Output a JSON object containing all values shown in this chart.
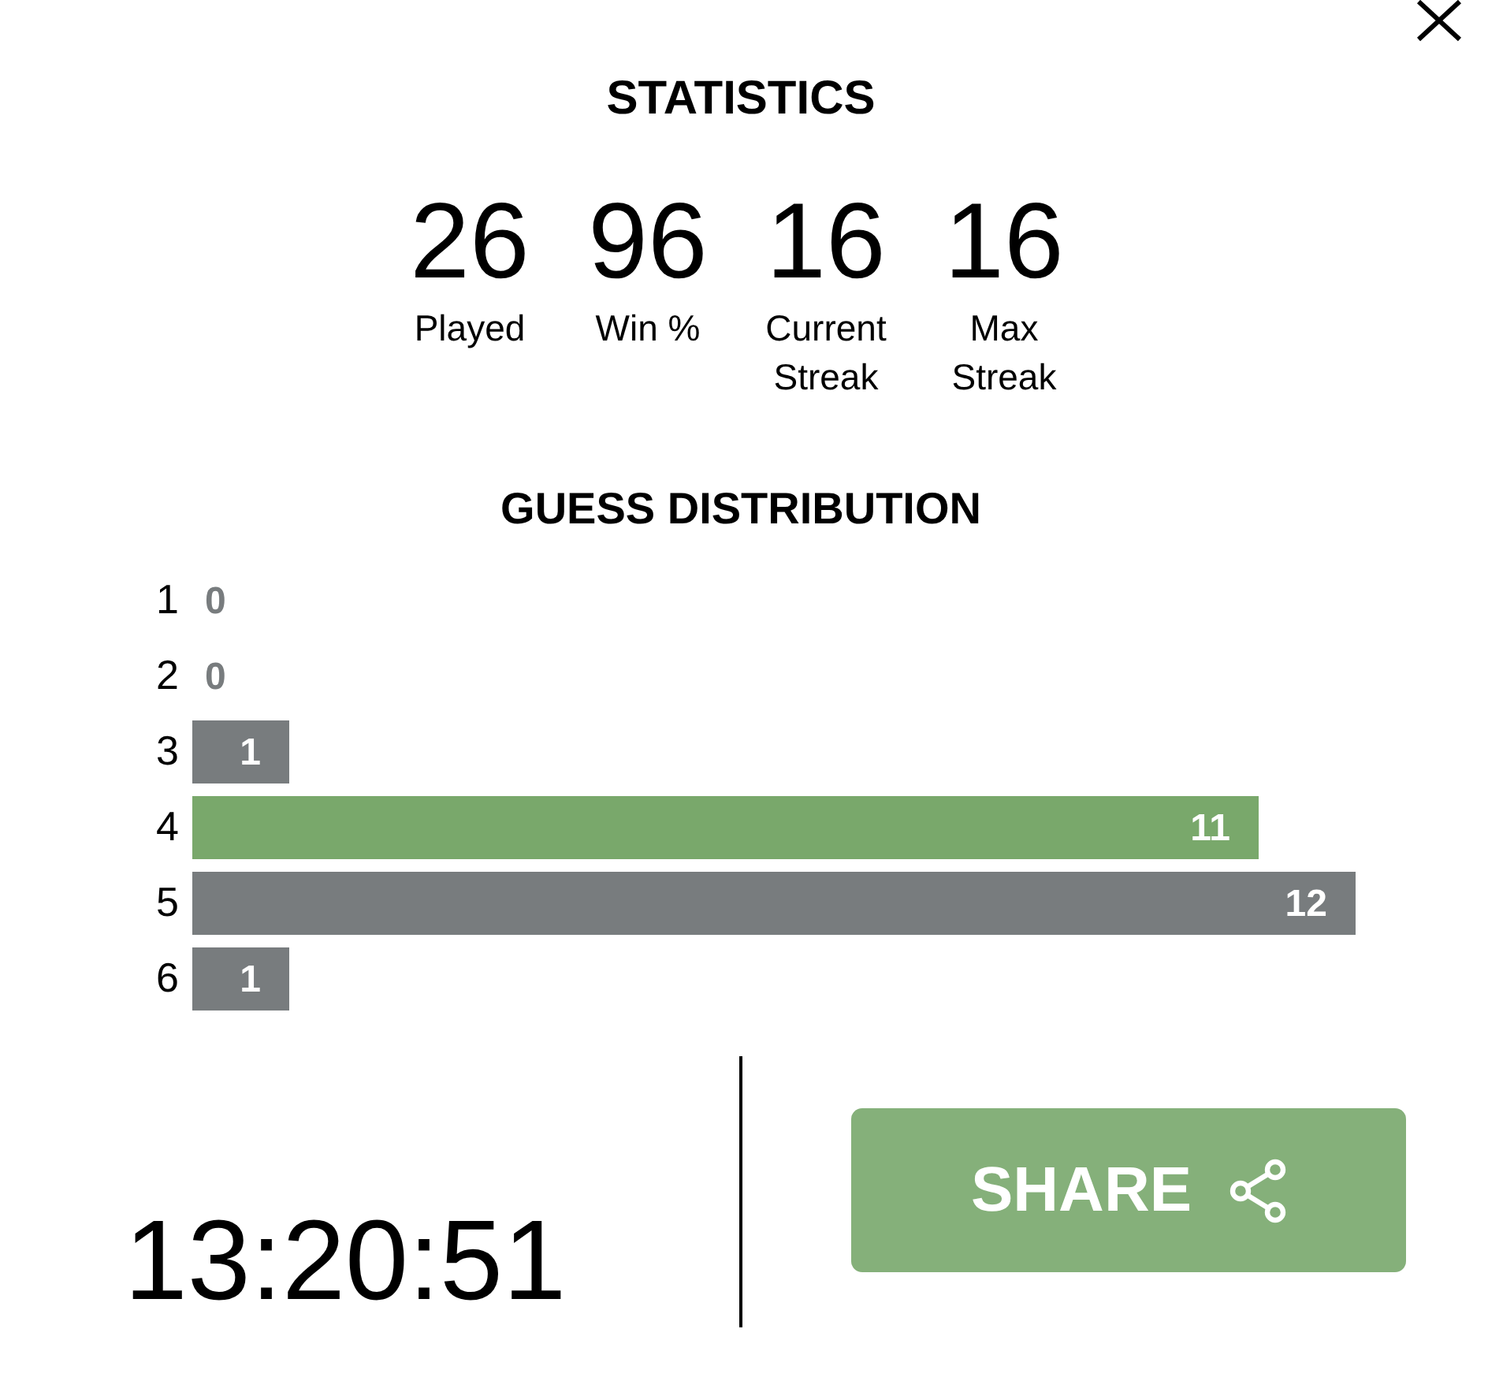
{
  "chart_data": [
    {
      "type": "other",
      "title": "STATISTICS",
      "annotations": [
        "26",
        "Played",
        "96",
        "Win %",
        "16",
        "Current Streak",
        "16",
        "Max Streak"
      ]
    },
    {
      "type": "bar",
      "title": "GUESS DISTRIBUTION",
      "orientation": "horizontal",
      "categories": [
        "1",
        "2",
        "3",
        "4",
        "5",
        "6"
      ],
      "values": [
        0,
        0,
        1,
        11,
        12,
        1
      ],
      "colors": [
        "#787c7e",
        "#787c7e",
        "#787c7e",
        "#79a86b",
        "#787c7e",
        "#787c7e"
      ],
      "data_labels": true,
      "tick_labels": "y"
    },
    {
      "type": "other",
      "annotations": [
        "13:20:51",
        "SHARE"
      ]
    }
  ]
}
